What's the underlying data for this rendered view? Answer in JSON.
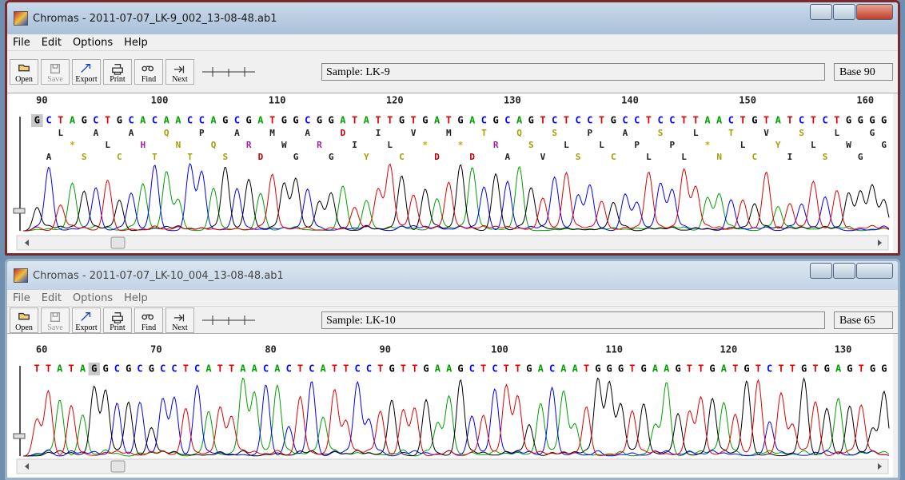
{
  "windows": [
    {
      "title": "Chromas - 2011-07-07_LK-9_002_13-08-48.ab1",
      "menu": [
        "File",
        "Edit",
        "Options",
        "Help"
      ],
      "toolbar": [
        "Open",
        "Save",
        "Export",
        "Print",
        "Find",
        "Next"
      ],
      "sample": "Sample: LK-9",
      "base": "Base 90",
      "ruler": [
        90,
        100,
        110,
        120,
        130,
        140,
        150,
        160
      ],
      "sequence": "GCTAGCTGCACAACCAGCGATGGCGGATATTGTGATGACGCAGTCTCCTGCCTCCTTAACTGTATCTCTGGGG",
      "frames": [
        "LAAQPAMADIVMTQSPASLTVSLG",
        "*LHNQRWRIL**RSLLPP*LYLWG",
        "ASCTTSDGGYCDDAVSCLLNCISGA"
      ]
    },
    {
      "title": "Chromas - 2011-07-07_LK-10_004_13-08-48.ab1",
      "menu": [
        "File",
        "Edit",
        "Options",
        "Help"
      ],
      "toolbar": [
        "Open",
        "Save",
        "Export",
        "Print",
        "Find",
        "Next"
      ],
      "sample": "Sample: LK-10",
      "base": "Base 65",
      "ruler": [
        60,
        70,
        80,
        90,
        100,
        110,
        120,
        130
      ],
      "sequence": "TTATAGGCGCGCCTCATTAACACTCATTCCTGTTGAAGCTCTTGACAATGGGTGAAGTTGATGTCTTGTGAGTGG",
      "frames": []
    }
  ]
}
